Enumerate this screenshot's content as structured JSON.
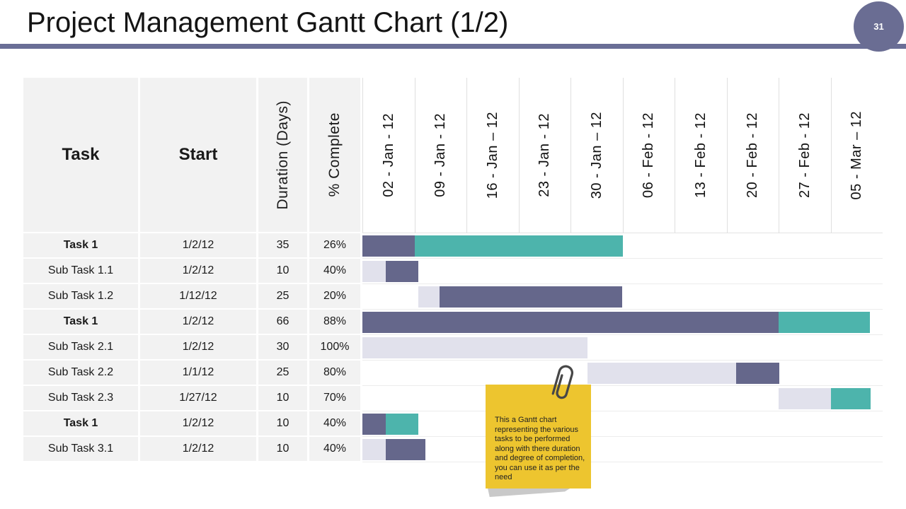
{
  "title": "Project Management Gantt Chart (1/2)",
  "badge": "31",
  "colors": {
    "accent": "#6a6e96",
    "slate": "#65678b",
    "teal": "#4db4ac",
    "lavender": "#e1e1ec",
    "note_bg": "#edc52f"
  },
  "chart_data": {
    "type": "gantt",
    "title": "Project Management Gantt Chart (1/2)",
    "table_headers": {
      "task": "Task",
      "start": "Start",
      "duration": "Duration (Days)",
      "complete": "% Complete"
    },
    "timeline_ticks": [
      "02 - Jan - 12",
      "09 - Jan - 12",
      "16 - Jan – 12",
      "23 - Jan - 12",
      "30 - Jan – 12",
      "06 - Feb - 12",
      "13 - Feb - 12",
      "20 - Feb - 12",
      "27 - Feb - 12",
      "05 - Mar – 12"
    ],
    "timeline_total_days": 70,
    "tasks": [
      {
        "name": "Task 1",
        "bold": true,
        "start": "1/2/12",
        "duration": "35",
        "complete": "26%",
        "bars": [
          {
            "color": "slate",
            "from": 0,
            "to": 7
          },
          {
            "color": "teal",
            "from": 7,
            "to": 35
          }
        ]
      },
      {
        "name": "Sub Task 1.1",
        "bold": false,
        "start": "1/2/12",
        "duration": "10",
        "complete": "40%",
        "bars": [
          {
            "color": "lavender",
            "from": 0,
            "to": 3.1
          },
          {
            "color": "slate",
            "from": 3.1,
            "to": 7.5
          }
        ]
      },
      {
        "name": "Sub Task 1.2",
        "bold": false,
        "start": "1/12/12",
        "duration": "25",
        "complete": "20%",
        "bars": [
          {
            "color": "lavender",
            "from": 7.5,
            "to": 10.4
          },
          {
            "color": "slate",
            "from": 10.4,
            "to": 35
          }
        ]
      },
      {
        "name": "Task 1",
        "bold": true,
        "start": "1/2/12",
        "duration": "66",
        "complete": "88%",
        "bars": [
          {
            "color": "slate",
            "from": 0,
            "to": 56
          },
          {
            "color": "teal",
            "from": 56,
            "to": 68.3
          }
        ]
      },
      {
        "name": "Sub Task 2.1",
        "bold": false,
        "start": "1/2/12",
        "duration": "30",
        "complete": "100%",
        "bars": [
          {
            "color": "lavender",
            "from": 0,
            "to": 30.3
          }
        ]
      },
      {
        "name": "Sub Task 2.2",
        "bold": false,
        "start": "1/1/12",
        "duration": "25",
        "complete": "80%",
        "bars": [
          {
            "color": "lavender",
            "from": 30.3,
            "to": 50.3
          },
          {
            "color": "slate",
            "from": 50.3,
            "to": 56.1
          }
        ]
      },
      {
        "name": "Sub Task 2.3",
        "bold": false,
        "start": "1/27/12",
        "duration": "10",
        "complete": "70%",
        "bars": [
          {
            "color": "lavender",
            "from": 56,
            "to": 63
          },
          {
            "color": "teal",
            "from": 63,
            "to": 68.4
          }
        ]
      },
      {
        "name": "Task 1",
        "bold": true,
        "start": "1/2/12",
        "duration": "10",
        "complete": "40%",
        "bars": [
          {
            "color": "slate",
            "from": 0,
            "to": 3.1
          },
          {
            "color": "teal",
            "from": 3.1,
            "to": 7.5
          }
        ]
      },
      {
        "name": "Sub Task 3.1",
        "bold": false,
        "start": "1/2/12",
        "duration": "10",
        "complete": "40%",
        "bars": [
          {
            "color": "lavender",
            "from": 0,
            "to": 3.1
          },
          {
            "color": "slate",
            "from": 3.1,
            "to": 8.5
          }
        ]
      }
    ]
  },
  "note": {
    "text": "This a Gantt chart\nrepresenting the various\ntasks to be performed\nalong with there duration\nand degree of completion,\nyou can use it as per the\nneed"
  }
}
